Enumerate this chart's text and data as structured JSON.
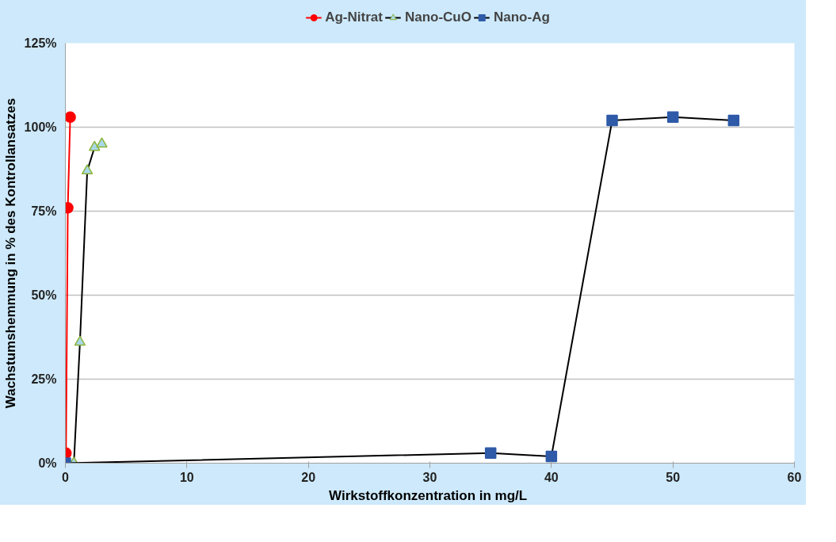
{
  "chart_data": {
    "type": "line",
    "xlabel": "Wirkstoffkonzentration  in mg/L",
    "ylabel": "Wachstumshemmung in % des Kontrollansatzes",
    "series": [
      {
        "name": "Ag-Nitrat",
        "color": "#ff0000",
        "marker": "circle",
        "x": [
          0,
          0.05,
          0.2,
          0.4
        ],
        "values": [
          0,
          3,
          76,
          103
        ]
      },
      {
        "name": "Nano-CuO",
        "color": "#a8d8e8",
        "marker": "triangle",
        "x": [
          0.7,
          1.2,
          1.8,
          2.4,
          3.0
        ],
        "values": [
          0,
          36,
          87,
          94,
          95
        ]
      },
      {
        "name": "Nano-Ag",
        "color": "#2e5aa8",
        "marker": "square",
        "x": [
          0,
          35,
          40,
          45,
          50,
          55
        ],
        "values": [
          0,
          3,
          2,
          102,
          103,
          102
        ]
      }
    ],
    "xlim": [
      0,
      60
    ],
    "xticks": [
      0,
      10,
      20,
      30,
      40,
      50,
      60
    ],
    "ylim": [
      0,
      125
    ],
    "yticks": [
      {
        "value": 0,
        "label": "0%"
      },
      {
        "value": 25,
        "label": "25%"
      },
      {
        "value": 50,
        "label": "50%"
      },
      {
        "value": 75,
        "label": "75%"
      },
      {
        "value": 100,
        "label": "100%"
      },
      {
        "value": 125,
        "label": "125%"
      }
    ],
    "grid": "y",
    "legend": "top",
    "line_style": "solid"
  }
}
